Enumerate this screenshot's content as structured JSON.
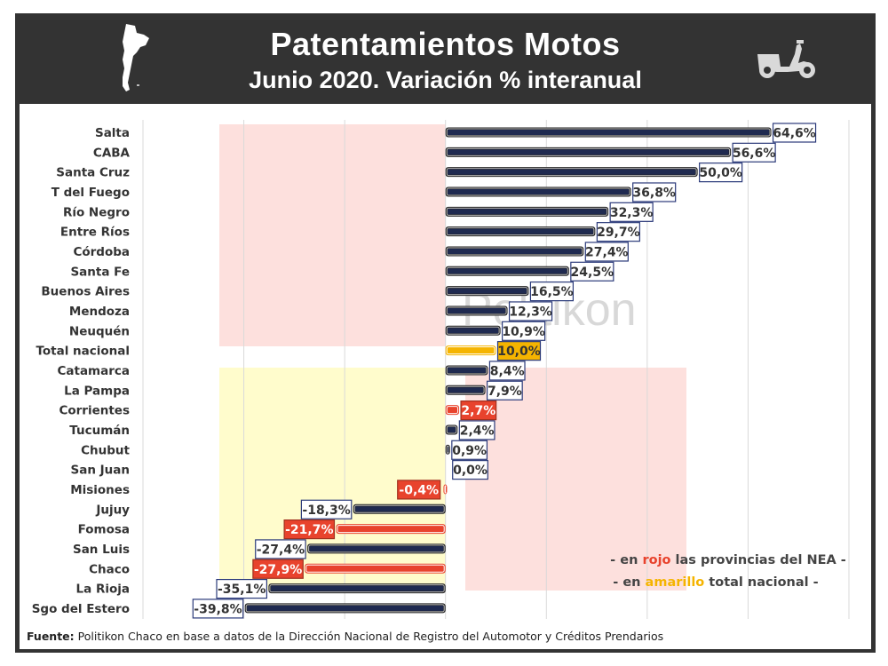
{
  "header": {
    "title": "Patentamientos Motos",
    "subtitle": "Junio 2020. Variación % interanual",
    "icons": [
      "argentina-map-icon",
      "scooter-icon"
    ]
  },
  "colors": {
    "header_bg": "#333333",
    "bar_default": "#1f2a50",
    "bar_nea": "#e8432d",
    "bar_total": "#f5b400",
    "shade_pink": "#fde0dd",
    "shade_yellow": "#fffccc"
  },
  "watermark": "Politikon",
  "legend_notes": {
    "line1_prefix": "- en ",
    "line1_highlight": "rojo",
    "line1_suffix": " las provincias del NEA -",
    "line2_prefix": "- en ",
    "line2_highlight": "amarillo",
    "line2_suffix": " total nacional -"
  },
  "footer": {
    "label": "Fuente:",
    "text": " Politikon Chaco en base a datos de la Dirección Nacional de Registro del Automotor y Créditos Prendarios"
  },
  "chart_data": {
    "type": "bar",
    "orientation": "horizontal",
    "title": "Patentamientos Motos",
    "subtitle": "Junio 2020. Variación % interanual",
    "xlabel": "",
    "ylabel": "",
    "xlim": [
      -60,
      80
    ],
    "grid_step": 20,
    "grid": true,
    "categories": [
      "Salta",
      "CABA",
      "Santa Cruz",
      "T del Fuego",
      "Río Negro",
      "Entre Ríos",
      "Córdoba",
      "Santa Fe",
      "Buenos Aires",
      "Mendoza",
      "Neuquén",
      "Total nacional",
      "Catamarca",
      "La Pampa",
      "Corrientes",
      "Tucumán",
      "Chubut",
      "San Juan",
      "Misiones",
      "Jujuy",
      "Fomosa",
      "San Luis",
      "Chaco",
      "La Rioja",
      "Sgo del Estero"
    ],
    "values": [
      64.6,
      56.6,
      50.0,
      36.8,
      32.3,
      29.7,
      27.4,
      24.5,
      16.5,
      12.3,
      10.9,
      10.0,
      8.4,
      7.9,
      2.7,
      2.4,
      0.9,
      0.0,
      -0.4,
      -18.3,
      -21.7,
      -27.4,
      -27.9,
      -35.1,
      -39.8
    ],
    "labels": [
      "64,6%",
      "56,6%",
      "50,0%",
      "36,8%",
      "32,3%",
      "29,7%",
      "27,4%",
      "24,5%",
      "16,5%",
      "12,3%",
      "10,9%",
      "10,0%",
      "8,4%",
      "7,9%",
      "2,7%",
      "2,4%",
      "0,9%",
      "0,0%",
      "-0,4%",
      "-18,3%",
      "-21,7%",
      "-27,4%",
      "-27,9%",
      "-35,1%",
      "-39,8%"
    ],
    "groups": [
      "other",
      "other",
      "other",
      "other",
      "other",
      "other",
      "other",
      "other",
      "other",
      "other",
      "other",
      "total",
      "other",
      "other",
      "nea",
      "other",
      "other",
      "other",
      "nea",
      "other",
      "nea",
      "other",
      "nea",
      "other",
      "other"
    ]
  }
}
